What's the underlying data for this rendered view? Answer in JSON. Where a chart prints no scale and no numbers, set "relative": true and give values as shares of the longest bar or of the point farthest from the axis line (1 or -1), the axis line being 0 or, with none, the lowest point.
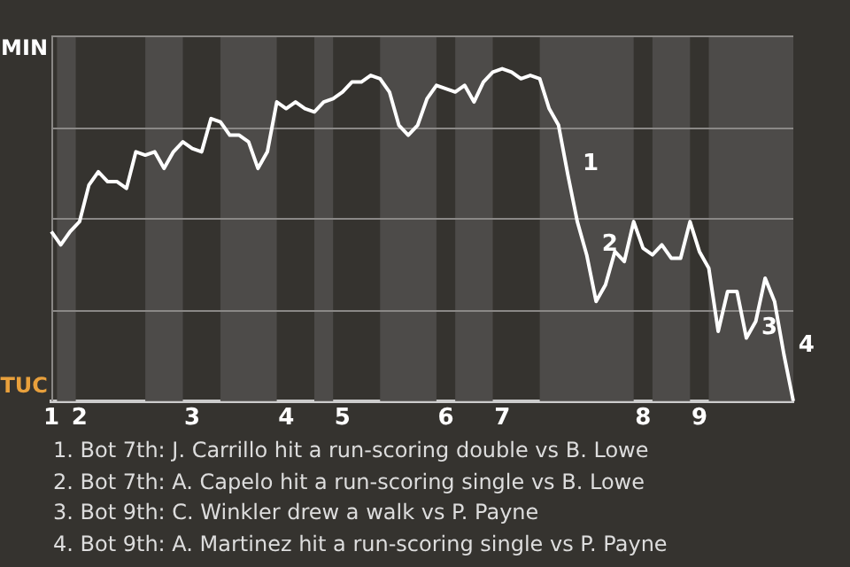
{
  "chart_data": {
    "type": "line",
    "relative": true,
    "categories": [
      "1",
      null,
      null,
      "2",
      null,
      null,
      null,
      null,
      null,
      null,
      null,
      null,
      null,
      null,
      null,
      "3",
      null,
      null,
      null,
      null,
      null,
      null,
      null,
      null,
      null,
      "4",
      null,
      null,
      null,
      null,
      null,
      "5",
      null,
      null,
      null,
      null,
      null,
      null,
      null,
      null,
      null,
      null,
      "6",
      null,
      null,
      null,
      null,
      null,
      "7",
      null,
      null,
      null,
      null,
      null,
      null,
      null,
      null,
      null,
      null,
      null,
      null,
      null,
      null,
      "8",
      null,
      null,
      null,
      null,
      null,
      "9",
      null,
      null,
      null,
      null,
      null,
      null,
      null,
      null,
      null,
      null
    ],
    "series": [
      {
        "color": "#ffffff",
        "values": [
          0.51,
          0.47,
          0.51,
          0.54,
          0.65,
          0.69,
          0.66,
          0.66,
          0.64,
          0.75,
          0.74,
          0.75,
          0.7,
          0.75,
          0.78,
          0.76,
          0.75,
          0.85,
          0.84,
          0.8,
          0.8,
          0.78,
          0.7,
          0.75,
          0.9,
          0.88,
          0.9,
          0.88,
          0.87,
          0.9,
          0.91,
          0.93,
          0.96,
          0.96,
          0.98,
          0.97,
          0.93,
          0.83,
          0.8,
          0.83,
          0.91,
          0.95,
          0.94,
          0.93,
          0.95,
          0.9,
          0.96,
          0.99,
          1,
          0.99,
          0.97,
          0.98,
          0.97,
          0.88,
          0.83,
          0.68,
          0.54,
          0.44,
          0.3,
          0.35,
          0.45,
          0.42,
          0.54,
          0.46,
          0.44,
          0.47,
          0.43,
          0.43,
          0.54,
          0.45,
          0.4,
          0.21,
          0.33,
          0.33,
          0.19,
          0.24,
          0.37,
          0.3,
          0.14,
          0
        ]
      }
    ],
    "grid": true,
    "annotations": [
      "MIN",
      "TUC",
      "1",
      "2",
      "3",
      "4",
      "1. Bot 7th: J. Carrillo hit a run-scoring double vs B. Lowe",
      "2. Bot 7th: A. Capelo hit a run-scoring single vs B. Lowe",
      "3. Bot 9th: C. Winkler drew a walk vs P. Payne",
      "4. Bot 9th: A. Martinez hit a run-scoring single vs P. Payne"
    ]
  }
}
